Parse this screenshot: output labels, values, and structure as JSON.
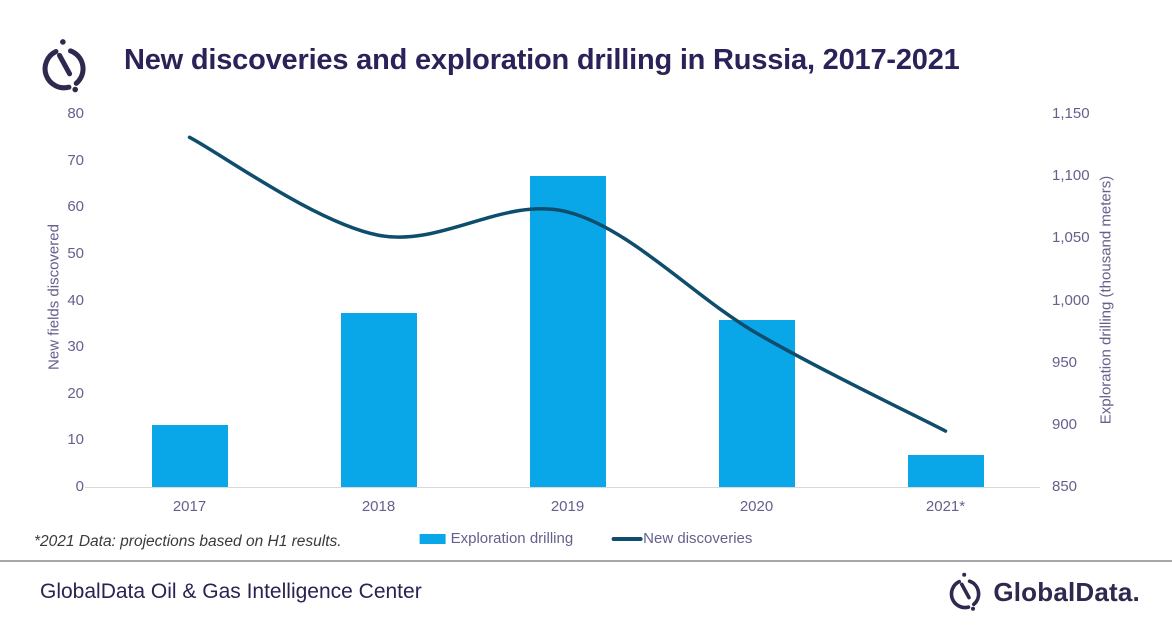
{
  "header": {
    "title": "New discoveries and exploration drilling in Russia, 2017-2021"
  },
  "chart_data": {
    "type": "combo",
    "categories": [
      "2017",
      "2018",
      "2019",
      "2020",
      "2021*"
    ],
    "series": [
      {
        "name": "Exploration drilling",
        "type": "bar",
        "axis": "right",
        "values": [
          900,
          990,
          1100,
          984,
          876
        ],
        "color": "#0AA7E8"
      },
      {
        "name": "New discoveries",
        "type": "line",
        "axis": "left",
        "values": [
          75,
          54,
          59,
          33,
          12
        ],
        "color": "#0F4D6D"
      }
    ],
    "ylabel_left": "New fields discovered",
    "ylabel_right": "Exploration drilling (thousand meters)",
    "left_axis": {
      "min": 0,
      "max": 80,
      "step": 10
    },
    "right_axis": {
      "min": 850,
      "max": 1150,
      "step": 50
    },
    "grid": false,
    "legend_position": "bottom"
  },
  "footnote": "*2021 Data: projections based on H1 results.",
  "footer": {
    "left_text": "GlobalData Oil & Gas Intelligence Center",
    "brand": "GlobalData."
  },
  "colors": {
    "bar": "#0AA7E8",
    "line": "#0F4D6D",
    "title": "#2C2159",
    "axis_text": "#64618C",
    "footnote_text": "#3A3A3A",
    "divider": "#A6A6A6",
    "logo": "#2E294E"
  }
}
